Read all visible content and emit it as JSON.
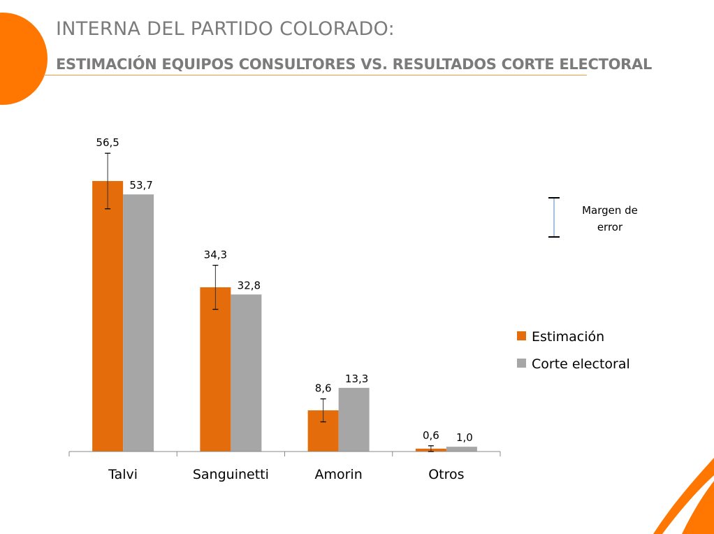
{
  "header": {
    "title": "INTERNA DEL PARTIDO COLORADO:",
    "subtitle": "ESTIMACIÓN EQUIPOS CONSULTORES VS.  RESULTADOS CORTE ELECTORAL"
  },
  "colors": {
    "accent": "#ff7700",
    "estimacion": "#e46c0a",
    "corte": "#a6a6a6",
    "title_text": "#7b7b7b",
    "rule": "#f59a3e",
    "error_legend_line": "#4f81bd"
  },
  "chart_data": {
    "type": "bar",
    "title": "",
    "xlabel": "",
    "ylabel": "",
    "ylim": [
      0,
      62
    ],
    "grid": false,
    "categories": [
      "Talvi",
      "Sanguinetti",
      "Amorin",
      "Otros"
    ],
    "series": [
      {
        "name": "Estimación",
        "values": [
          56.5,
          34.3,
          8.6,
          0.6
        ],
        "labels": [
          "56,5",
          "34,3",
          "8,6",
          "0,6"
        ],
        "error_margin": [
          5.8,
          4.6,
          2.4,
          0.6
        ]
      },
      {
        "name": "Corte electoral",
        "values": [
          53.7,
          32.8,
          13.3,
          1.0
        ],
        "labels": [
          "53,7",
          "32,8",
          "13,3",
          "1,0"
        ]
      }
    ],
    "legend": {
      "position": "right",
      "entries": [
        "Estimación",
        "Corte electoral"
      ]
    },
    "error_legend": {
      "label_line1": "Margen de",
      "label_line2": "error"
    }
  }
}
